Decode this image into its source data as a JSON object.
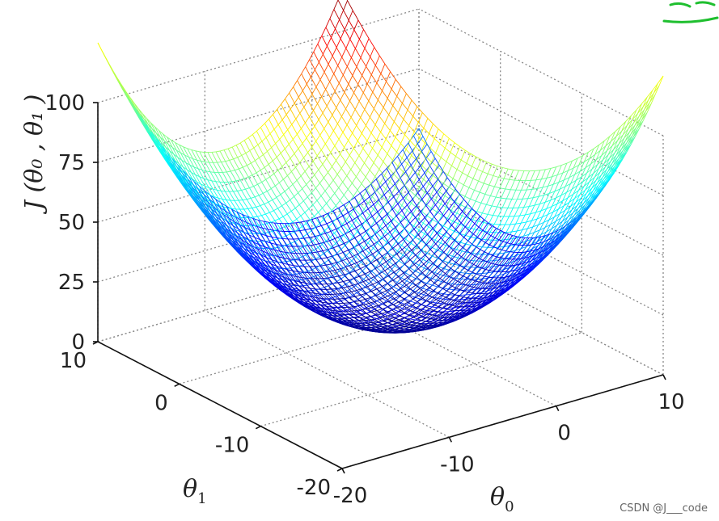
{
  "chart_data": {
    "type": "surface",
    "function": "J(theta0, theta1) = 0.25*theta0^2 + 0.25*theta1^2",
    "xlabel_base": "θ",
    "xlabel_sub": "0",
    "ylabel_base": "θ",
    "ylabel_sub": "1",
    "zlabel": "J (θ₀ , θ₁ )",
    "x_ticks": [
      "-20",
      "-10",
      "0",
      "10"
    ],
    "y_ticks": [
      "-20",
      "-10",
      "0",
      "10"
    ],
    "z_ticks": [
      "0",
      "25",
      "50",
      "75",
      "100"
    ],
    "xlim": [
      -20,
      10
    ],
    "ylim": [
      -20,
      10
    ],
    "zlim": [
      0,
      100
    ],
    "grid": true,
    "colormap": "jet"
  },
  "watermark": "CSDN @J___code",
  "annotation_color": "#1fbf2f"
}
